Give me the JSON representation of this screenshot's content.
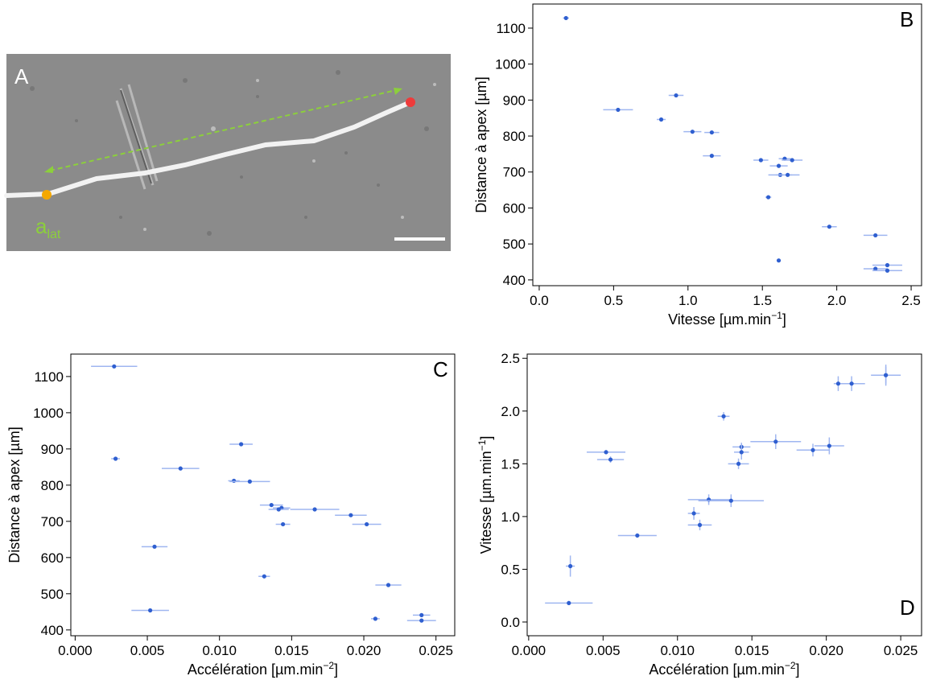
{
  "image_panel": {
    "label": "A",
    "annotation": "a",
    "annotation_subscript": "lat"
  },
  "chart_data": [
    {
      "type": "scatter",
      "panel_label": "B",
      "xlabel": {
        "text": "Vitesse [µm.min",
        "superscript": "−1",
        "suffix": "]"
      },
      "ylabel": "Distance à apex [µm]",
      "x": [
        0.18,
        0.53,
        0.92,
        0.82,
        1.03,
        1.16,
        1.16,
        1.49,
        1.54,
        1.61,
        1.65,
        1.7,
        1.62,
        1.67,
        1.95,
        1.61,
        2.26,
        2.26,
        2.34,
        2.34
      ],
      "y": [
        1128,
        873,
        913,
        846,
        812,
        810,
        745,
        733,
        630,
        717,
        737,
        733,
        692,
        692,
        548,
        454,
        524,
        431,
        441,
        426
      ],
      "xerr": [
        0.02,
        0.1,
        0.05,
        0.03,
        0.06,
        0.05,
        0.06,
        0.05,
        0.02,
        0.06,
        0.04,
        0.07,
        0.08,
        0.08,
        0.05,
        0.01,
        0.08,
        0.08,
        0.1,
        0.1
      ],
      "color": "#2f5fd0",
      "error_color": "#9fb6f0",
      "xlim": [
        -0.043,
        2.57
      ],
      "ylim": [
        384,
        1167
      ],
      "xticks": [
        {
          "value": 0,
          "label": "0.0"
        },
        0.5,
        {
          "value": 1,
          "label": "1.0"
        },
        1.5,
        {
          "value": 2,
          "label": "2.0"
        },
        2.5
      ],
      "yticks": [
        400,
        500,
        600,
        700,
        800,
        900,
        1000,
        1100
      ]
    },
    {
      "type": "scatter",
      "panel_label": "C",
      "xlabel": {
        "text": "Accélération [µm.min",
        "superscript": "−2",
        "suffix": "]"
      },
      "ylabel": "Distance à apex [µm]",
      "x": [
        0.0027,
        0.0028,
        0.0115,
        0.0073,
        0.011,
        0.0121,
        0.0136,
        0.0166,
        0.0055,
        0.0191,
        0.0143,
        0.0141,
        0.0144,
        0.0202,
        0.0131,
        0.0052,
        0.0217,
        0.0208,
        0.024,
        0.024
      ],
      "y": [
        1128,
        873,
        913,
        846,
        812,
        810,
        745,
        733,
        630,
        717,
        737,
        733,
        692,
        692,
        548,
        454,
        524,
        431,
        441,
        426
      ],
      "xerr": [
        0.0016,
        0.0003,
        0.0008,
        0.0013,
        0.0004,
        0.0014,
        0.0008,
        0.0017,
        0.0009,
        0.0011,
        0.0006,
        0.0007,
        0.0005,
        0.001,
        0.0004,
        0.0013,
        0.0009,
        0.0003,
        0.0006,
        0.001
      ],
      "color": "#2f5fd0",
      "error_color": "#9fb6f0",
      "xlim": [
        -0.0003,
        0.0263
      ],
      "ylim": [
        384,
        1162
      ],
      "xticks": [
        {
          "value": 0,
          "label": "0.000"
        },
        {
          "value": 0.005,
          "label": "0.005"
        },
        {
          "value": 0.01,
          "label": "0.010"
        },
        {
          "value": 0.015,
          "label": "0.015"
        },
        {
          "value": 0.02,
          "label": "0.020"
        },
        {
          "value": 0.025,
          "label": "0.025"
        }
      ],
      "yticks": [
        400,
        500,
        600,
        700,
        800,
        900,
        1000,
        1100
      ]
    },
    {
      "type": "scatter",
      "panel_label": "D",
      "xlabel": {
        "text": "Accélération [µm.min",
        "superscript": "−2",
        "suffix": "]"
      },
      "ylabel": {
        "text": "Vitesse [µm.min",
        "superscript": "−1",
        "suffix": "]"
      },
      "x": [
        0.0027,
        0.0028,
        0.0115,
        0.0073,
        0.0111,
        0.0121,
        0.0136,
        0.0166,
        0.0055,
        0.0191,
        0.0143,
        0.0141,
        0.0143,
        0.0202,
        0.0131,
        0.0052,
        0.0217,
        0.0208,
        0.024,
        0.024
      ],
      "y": [
        0.18,
        0.53,
        0.92,
        0.82,
        1.03,
        1.16,
        1.15,
        1.71,
        1.54,
        1.63,
        1.66,
        1.5,
        1.61,
        1.67,
        1.95,
        1.61,
        2.26,
        2.26,
        2.34,
        2.34
      ],
      "xerr": [
        0.0016,
        0.0003,
        0.0008,
        0.0013,
        0.0004,
        0.0014,
        0.0022,
        0.0017,
        0.0009,
        0.0011,
        0.0006,
        0.0007,
        0.0005,
        0.001,
        0.0004,
        0.0013,
        0.0009,
        0.0003,
        0.0006,
        0.001
      ],
      "yerr": [
        0.02,
        0.1,
        0.05,
        0.02,
        0.06,
        0.05,
        0.06,
        0.07,
        0.03,
        0.06,
        0.04,
        0.05,
        0.07,
        0.08,
        0.04,
        0.02,
        0.07,
        0.07,
        0.1,
        0.08
      ],
      "color": "#2f5fd0",
      "error_color": "#9fb6f0",
      "xlim": [
        -0.0001,
        0.0264
      ],
      "ylim": [
        -0.13,
        2.54
      ],
      "xticks": [
        {
          "value": 0,
          "label": "0.000"
        },
        {
          "value": 0.005,
          "label": "0.005"
        },
        {
          "value": 0.01,
          "label": "0.010"
        },
        {
          "value": 0.015,
          "label": "0.015"
        },
        {
          "value": 0.02,
          "label": "0.020"
        },
        {
          "value": 0.025,
          "label": "0.025"
        }
      ],
      "yticks": [
        {
          "value": 0,
          "label": "0.0"
        },
        0.5,
        {
          "value": 1,
          "label": "1.0"
        },
        1.5,
        {
          "value": 2,
          "label": "2.0"
        },
        2.5
      ]
    }
  ]
}
